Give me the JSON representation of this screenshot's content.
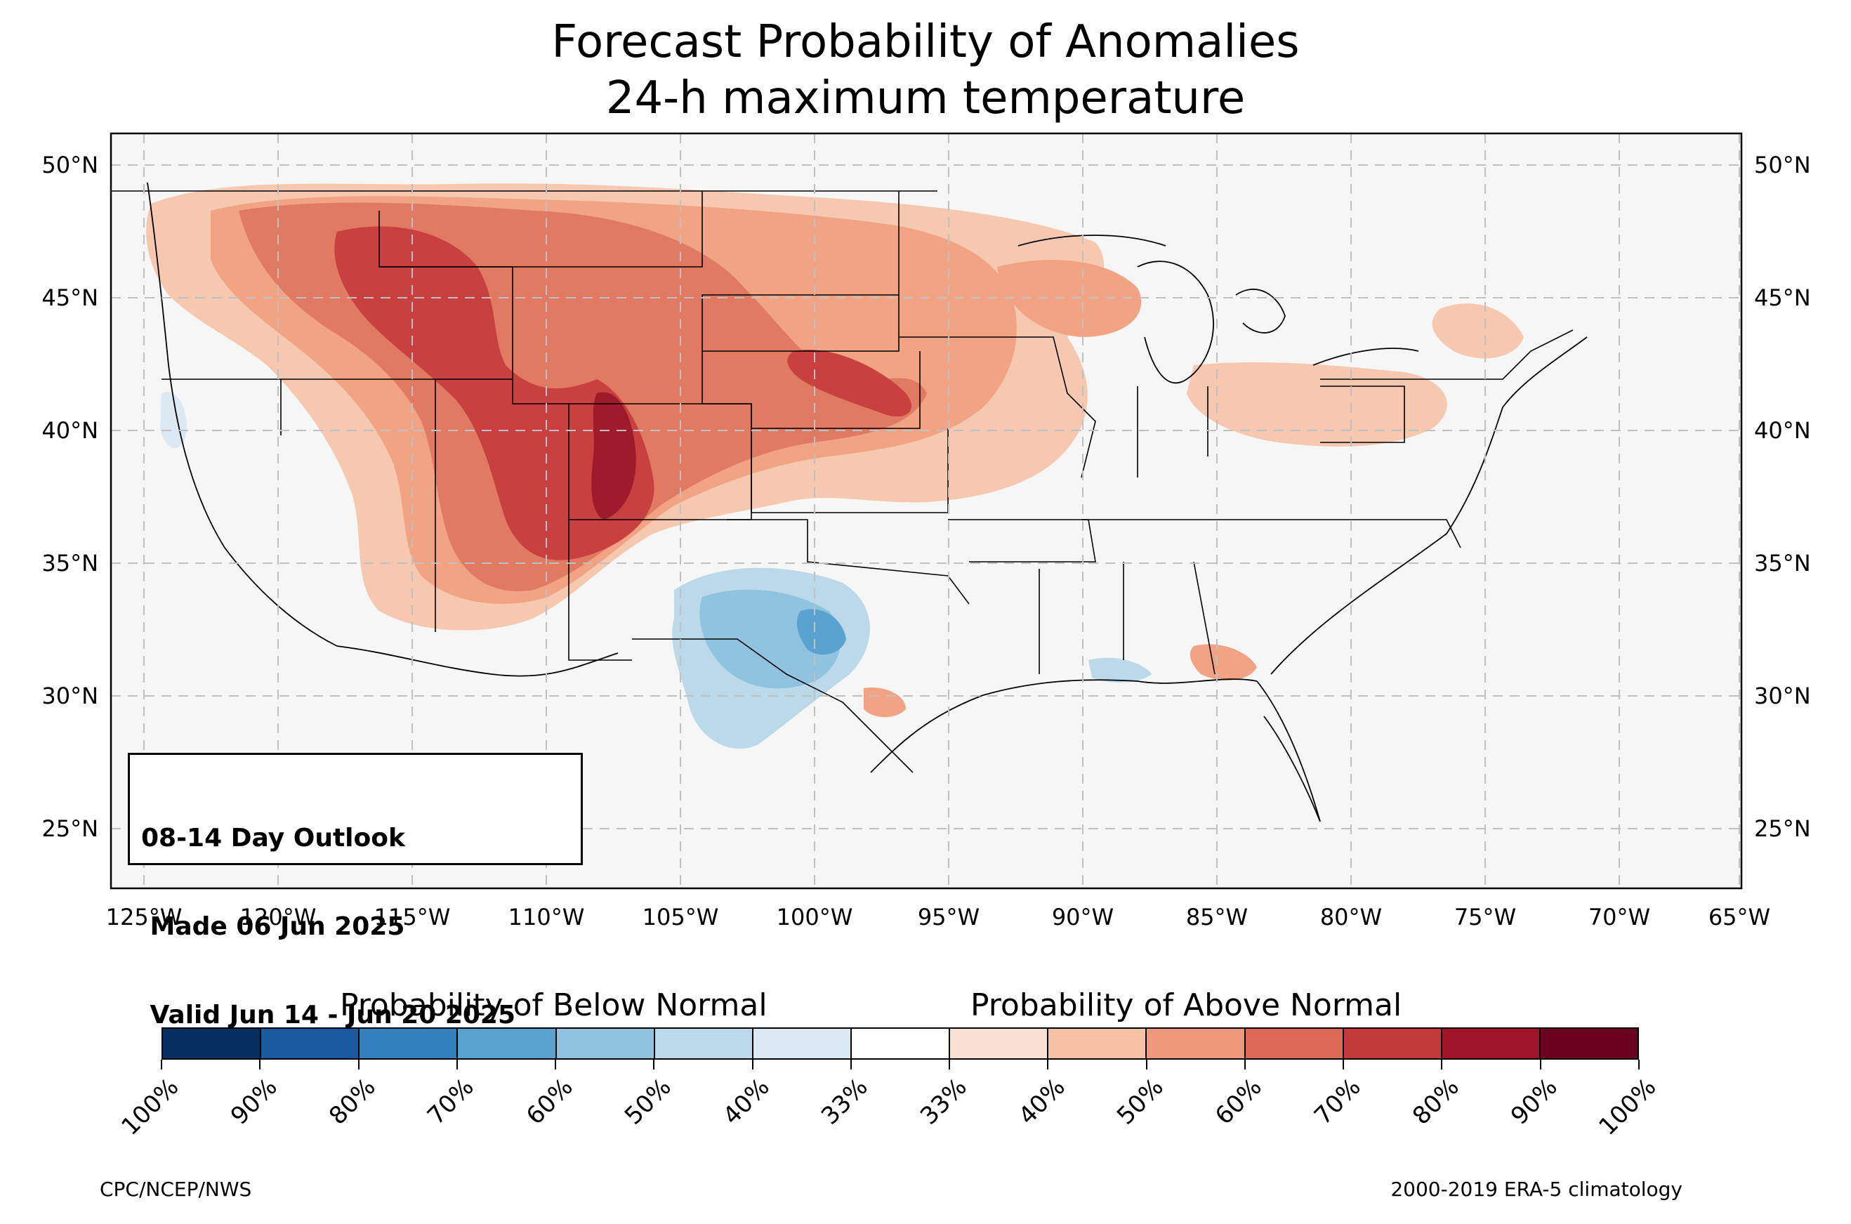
{
  "title": {
    "line1": "Forecast Probability of Anomalies",
    "line2": "24-h maximum temperature"
  },
  "map": {
    "latitude_labels": [
      "50°N",
      "45°N",
      "40°N",
      "35°N",
      "30°N",
      "25°N"
    ],
    "longitude_labels": [
      "125°W",
      "120°W",
      "115°W",
      "110°W",
      "105°W",
      "100°W",
      "95°W",
      "90°W",
      "85°W",
      "80°W",
      "75°W",
      "70°W",
      "65°W"
    ],
    "land_color": "#f5f6f5",
    "gridlines": "dashed"
  },
  "outlook_box": {
    "line1": "08-14 Day Outlook",
    "line2": " Made 06 Jun 2025",
    "line3": " Valid Jun 14 - Jun 20 2025"
  },
  "colorbar": {
    "below_label": "Probability of Below Normal",
    "above_label": "Probability of Above Normal",
    "tick_labels": [
      "100%",
      "90%",
      "80%",
      "70%",
      "60%",
      "50%",
      "40%",
      "33%",
      "33%",
      "40%",
      "50%",
      "60%",
      "70%",
      "80%",
      "90%",
      "100%"
    ],
    "colors": [
      "#053061",
      "#1a5a9e",
      "#3480bc",
      "#5aa2cf",
      "#8fc3df",
      "#bcd9ea",
      "#dde9f2",
      "#ffffff",
      "#fbe1d4",
      "#f5c1a7",
      "#ee9a7a",
      "#da6a55",
      "#c23a3c",
      "#a1152a",
      "#6c0020"
    ]
  },
  "footer": {
    "left": "CPC/NCEP/NWS",
    "right": "2000-2019 ERA-5 climatology"
  }
}
